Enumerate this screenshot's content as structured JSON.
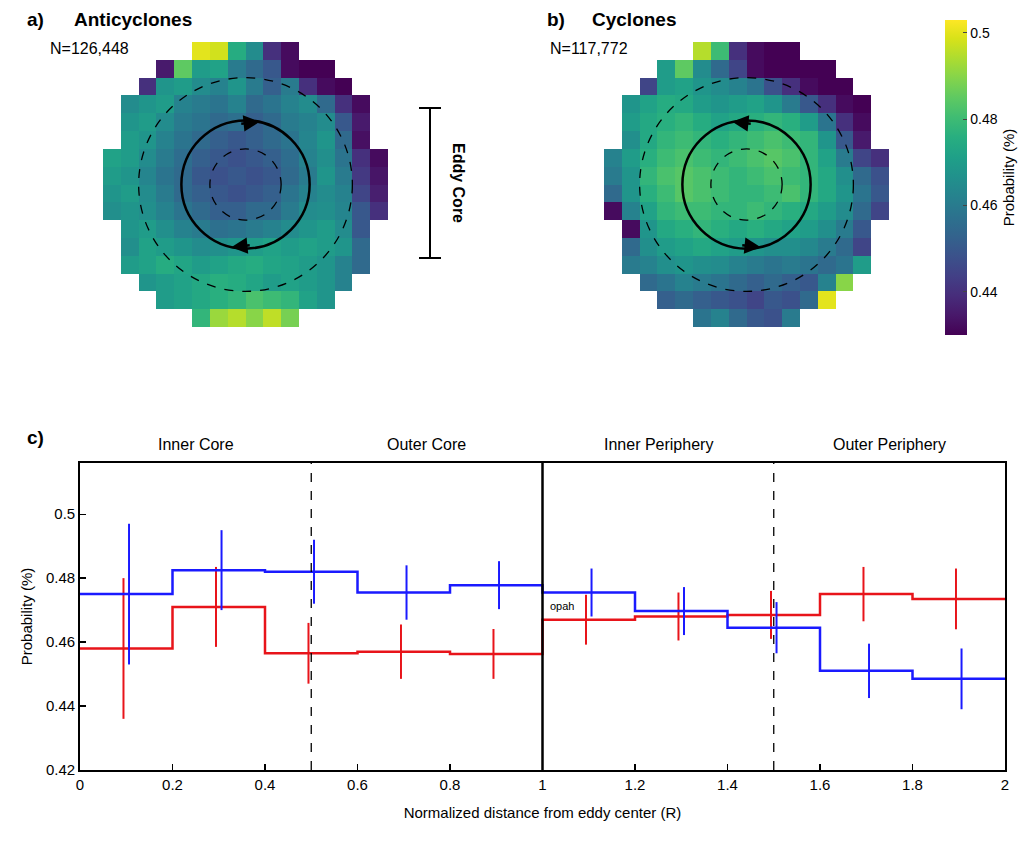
{
  "chart_data": [
    {
      "type": "heatmap",
      "panel": "a)",
      "title": "Anticyclones",
      "subtitle": "N=126,448",
      "xlim": [
        -2,
        2
      ],
      "ylim": [
        -2,
        2
      ],
      "tick_labels": false,
      "zlim": [
        0.43,
        0.503
      ],
      "annotations": [
        {
          "text": "Eddy Core"
        }
      ],
      "cells": [
        [
          null,
          null,
          null,
          null,
          null,
          0.5,
          0.498,
          0.475,
          0.465,
          0.44,
          0.432,
          null,
          null,
          null,
          null,
          null
        ],
        [
          null,
          null,
          null,
          0.435,
          0.485,
          0.47,
          0.472,
          0.46,
          0.455,
          0.45,
          0.432,
          0.43,
          0.43,
          null,
          null,
          null
        ],
        [
          null,
          null,
          0.44,
          0.468,
          0.47,
          0.465,
          0.462,
          0.468,
          0.46,
          0.452,
          0.46,
          0.44,
          0.432,
          0.43,
          null,
          null
        ],
        [
          null,
          0.465,
          0.468,
          0.47,
          0.462,
          0.46,
          0.458,
          0.462,
          0.455,
          0.458,
          0.462,
          0.465,
          0.455,
          0.44,
          0.432,
          null
        ],
        [
          null,
          0.468,
          0.47,
          0.465,
          0.46,
          0.458,
          0.455,
          0.457,
          0.452,
          0.455,
          0.46,
          0.462,
          0.465,
          0.45,
          0.435,
          null
        ],
        [
          null,
          0.47,
          0.468,
          0.462,
          0.458,
          0.455,
          0.452,
          0.45,
          0.452,
          0.455,
          0.458,
          0.463,
          0.468,
          0.455,
          0.433,
          null
        ],
        [
          0.472,
          0.47,
          0.465,
          0.46,
          0.456,
          0.452,
          0.45,
          0.448,
          0.45,
          0.452,
          0.456,
          0.462,
          0.466,
          0.458,
          0.44,
          0.432
        ],
        [
          0.47,
          0.468,
          0.463,
          0.458,
          0.455,
          0.45,
          0.448,
          0.45,
          0.448,
          0.45,
          0.455,
          0.46,
          0.468,
          0.46,
          0.442,
          0.434
        ],
        [
          0.468,
          0.47,
          0.465,
          0.46,
          0.455,
          0.452,
          0.45,
          0.448,
          0.45,
          0.452,
          0.458,
          0.462,
          0.465,
          0.462,
          0.445,
          0.436
        ],
        [
          0.466,
          0.468,
          0.466,
          0.462,
          0.458,
          0.455,
          0.452,
          0.452,
          0.455,
          0.455,
          0.46,
          0.465,
          0.466,
          0.463,
          0.45,
          0.44
        ],
        [
          null,
          0.468,
          0.47,
          0.466,
          0.462,
          0.46,
          0.457,
          0.458,
          0.46,
          0.462,
          0.465,
          0.468,
          0.47,
          0.465,
          0.45,
          null
        ],
        [
          null,
          0.466,
          0.472,
          0.47,
          0.468,
          0.465,
          0.466,
          0.468,
          0.47,
          0.472,
          0.47,
          0.472,
          0.47,
          0.468,
          0.455,
          null
        ],
        [
          null,
          0.47,
          0.472,
          0.475,
          0.473,
          0.47,
          0.472,
          0.474,
          0.475,
          0.473,
          0.472,
          0.47,
          0.468,
          0.462,
          0.455,
          null
        ],
        [
          null,
          null,
          0.468,
          0.47,
          0.472,
          0.474,
          0.476,
          0.475,
          0.473,
          0.47,
          0.472,
          0.47,
          0.468,
          0.462,
          null,
          null
        ],
        [
          null,
          null,
          null,
          0.47,
          0.472,
          0.474,
          0.476,
          0.478,
          0.482,
          0.48,
          0.478,
          0.472,
          0.468,
          null,
          null,
          null
        ],
        [
          null,
          null,
          null,
          null,
          null,
          0.478,
          0.492,
          0.495,
          0.49,
          0.496,
          0.488,
          null,
          null,
          null,
          null,
          null
        ]
      ]
    },
    {
      "type": "heatmap",
      "panel": "b)",
      "title": "Cyclones",
      "subtitle": "N=117,772",
      "xlim": [
        -2,
        2
      ],
      "ylim": [
        -2,
        2
      ],
      "tick_labels": false,
      "colorbar": {
        "title": "Probability (%)",
        "zlim": [
          0.43,
          0.503
        ],
        "ticks": [
          0.44,
          0.46,
          0.48,
          0.5
        ]
      },
      "cells": [
        [
          null,
          null,
          null,
          null,
          null,
          0.495,
          0.48,
          0.44,
          0.432,
          0.43,
          0.43,
          null,
          null,
          null,
          null,
          null
        ],
        [
          null,
          null,
          null,
          0.47,
          0.485,
          0.465,
          0.455,
          0.445,
          0.432,
          0.43,
          0.43,
          0.43,
          0.43,
          null,
          null,
          null
        ],
        [
          null,
          null,
          0.445,
          0.47,
          0.472,
          0.468,
          0.465,
          0.462,
          0.458,
          0.448,
          0.44,
          0.432,
          0.43,
          0.43,
          null,
          null
        ],
        [
          null,
          0.468,
          0.472,
          0.475,
          0.474,
          0.47,
          0.468,
          0.47,
          0.472,
          0.468,
          0.46,
          0.45,
          0.44,
          0.432,
          0.43,
          null
        ],
        [
          null,
          0.47,
          0.474,
          0.476,
          0.478,
          0.475,
          0.472,
          0.474,
          0.476,
          0.478,
          0.476,
          0.47,
          0.458,
          0.44,
          0.432,
          null
        ],
        [
          null,
          0.466,
          0.474,
          0.478,
          0.48,
          0.478,
          0.476,
          0.478,
          0.48,
          0.482,
          0.48,
          0.478,
          0.468,
          0.45,
          0.435,
          null
        ],
        [
          0.462,
          0.47,
          0.476,
          0.48,
          0.482,
          0.48,
          0.478,
          0.48,
          0.482,
          0.484,
          0.482,
          0.478,
          0.472,
          0.46,
          0.445,
          0.44
        ],
        [
          0.46,
          0.468,
          0.478,
          0.482,
          0.484,
          0.482,
          0.48,
          0.478,
          0.48,
          0.482,
          0.48,
          0.478,
          0.474,
          0.466,
          0.455,
          0.448
        ],
        [
          0.455,
          0.468,
          0.476,
          0.48,
          0.484,
          0.482,
          0.48,
          0.478,
          0.478,
          0.48,
          0.482,
          0.478,
          0.474,
          0.468,
          0.458,
          0.45
        ],
        [
          0.432,
          0.462,
          0.472,
          0.478,
          0.48,
          0.48,
          0.478,
          0.478,
          0.48,
          0.478,
          0.476,
          0.474,
          0.47,
          0.465,
          0.455,
          0.445
        ],
        [
          null,
          0.432,
          0.468,
          0.474,
          0.476,
          0.478,
          0.476,
          0.474,
          0.476,
          0.474,
          0.472,
          0.47,
          0.466,
          0.46,
          0.45,
          null
        ],
        [
          null,
          0.455,
          0.466,
          0.47,
          0.472,
          0.474,
          0.472,
          0.47,
          0.468,
          0.466,
          0.466,
          0.464,
          0.46,
          0.455,
          0.445,
          null
        ],
        [
          null,
          0.46,
          0.462,
          0.466,
          0.468,
          0.466,
          0.465,
          0.462,
          0.46,
          0.458,
          0.46,
          0.458,
          0.455,
          0.458,
          0.47,
          null
        ],
        [
          null,
          null,
          0.455,
          0.458,
          0.462,
          0.46,
          0.458,
          0.455,
          0.452,
          0.455,
          0.452,
          0.45,
          0.462,
          0.49,
          null,
          null
        ],
        [
          null,
          null,
          null,
          0.452,
          0.455,
          0.452,
          0.45,
          0.448,
          0.445,
          0.45,
          0.448,
          0.455,
          0.5,
          null,
          null,
          null
        ],
        [
          null,
          null,
          null,
          null,
          null,
          0.458,
          0.462,
          0.455,
          0.45,
          0.448,
          0.46,
          null,
          null,
          null,
          null,
          null
        ]
      ]
    },
    {
      "type": "line",
      "panel": "c)",
      "line_style": "step",
      "x_label": "Normalized distance from eddy center (R)",
      "y_label": "Probability (%)",
      "xlim": [
        0,
        2
      ],
      "ylim": [
        0.42,
        0.516
      ],
      "xticks": [
        0,
        0.2,
        0.4,
        0.6,
        0.8,
        1,
        1.2,
        1.4,
        1.6,
        1.8,
        2
      ],
      "yticks": [
        0.42,
        0.44,
        0.46,
        0.48,
        0.5
      ],
      "bins": [
        0,
        0.2,
        0.4,
        0.6,
        0.8,
        1,
        1.2,
        1.4,
        1.6,
        1.8,
        2
      ],
      "series": [
        {
          "color": "#e8141a",
          "values": [
            0.458,
            0.471,
            0.4565,
            0.457,
            0.4563,
            0.467,
            0.468,
            0.4685,
            0.475,
            0.4735
          ],
          "errors": [
            0.022,
            0.0125,
            0.0095,
            0.0085,
            0.0078,
            0.0078,
            0.0075,
            0.0075,
            0.0085,
            0.0095
          ]
        },
        {
          "color": "#1a1aff",
          "values": [
            0.475,
            0.4825,
            0.482,
            0.4755,
            0.4778,
            0.4755,
            0.4697,
            0.4645,
            0.451,
            0.4485
          ],
          "errors": [
            0.022,
            0.0125,
            0.01,
            0.0085,
            0.0075,
            0.0075,
            0.0075,
            0.008,
            0.0085,
            0.0095
          ]
        }
      ],
      "regions": [
        {
          "label": "Inner Core",
          "from": 0,
          "to": 0.5
        },
        {
          "label": "Outer Core",
          "from": 0.5,
          "to": 1
        },
        {
          "label": "Inner Periphery",
          "from": 1,
          "to": 1.5
        },
        {
          "label": "Outer Periphery",
          "from": 1.5,
          "to": 2
        }
      ],
      "boundaries": [
        {
          "x": 0.5,
          "line_style": "dashed"
        },
        {
          "x": 1,
          "line_style": "solid"
        },
        {
          "x": 1.5,
          "line_style": "dashed"
        }
      ],
      "annotations": [
        {
          "text": "opah"
        }
      ]
    }
  ]
}
